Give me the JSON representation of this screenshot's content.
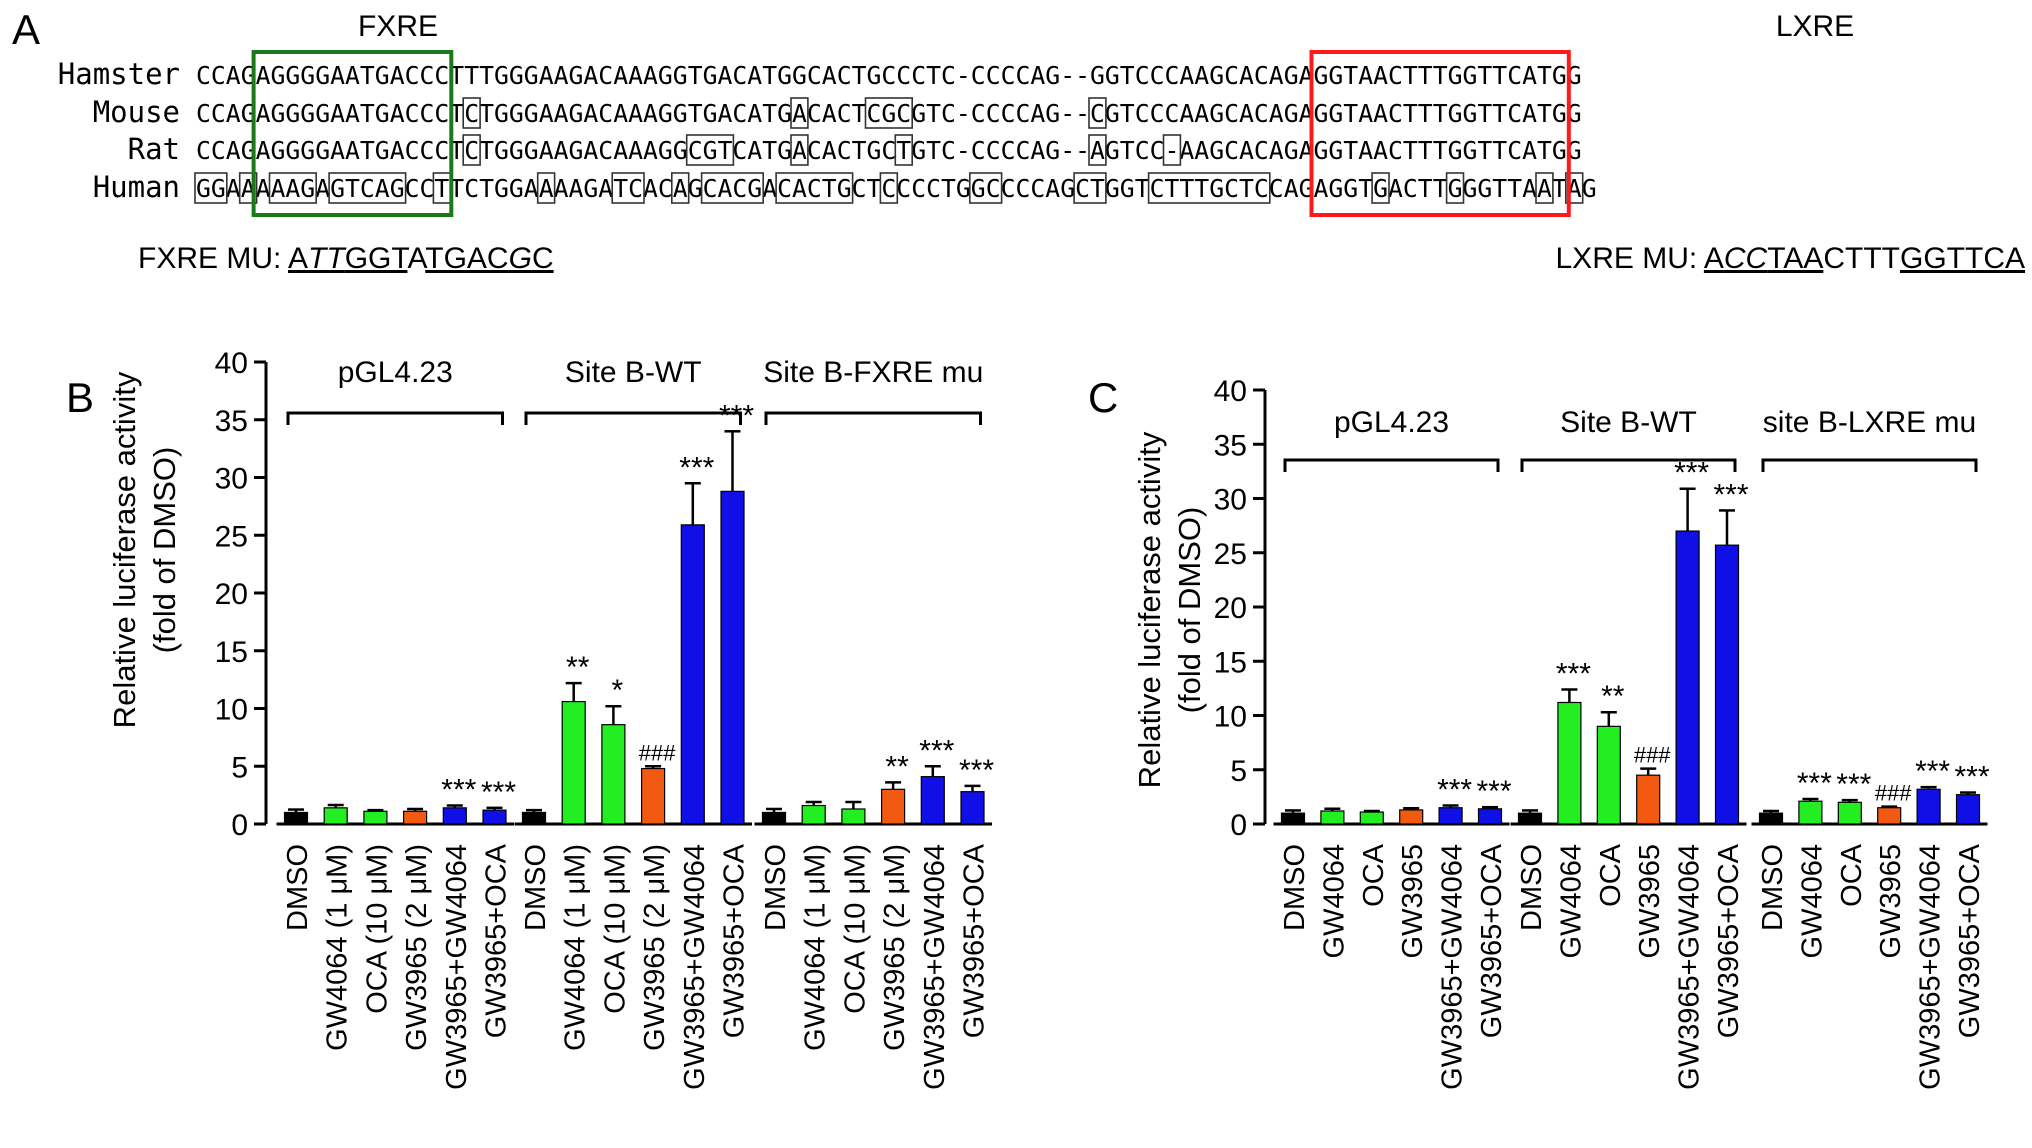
{
  "panels": {
    "a": "A",
    "b": "B",
    "c": "C"
  },
  "sequence": {
    "element_labels": {
      "fxre": "FXRE",
      "lxre": "LXRE"
    },
    "fxre_box_color": "#1a7a1a",
    "lxre_box_color": "#ff1a1a",
    "rows": [
      {
        "species": "Hamster",
        "seq": "CCAGAGGGGAATGACCCTTTGGGAAGACAAAGGTGACATGGCACTGCCCTC-CCCCAG--GGTCCCAAGCACAGAGGTAACTTTGGTTCATGG",
        "boxed": []
      },
      {
        "species": "Mouse",
        "seq": "CCAGAGGGGAATGACCCTCTGGGAAGACAAAGGTGACATGACACTCGCGTC-CCCCAG--CGTCCCAAGCACAGAGGTAACTTTGGTTCATGG",
        "boxed": [
          [
            18,
            18
          ],
          [
            40,
            40
          ],
          [
            45,
            47
          ],
          [
            60,
            60
          ]
        ]
      },
      {
        "species": "Rat",
        "seq": "CCAGAGGGGAATGACCCTCTGGGAAGACAAAGGCGTCATGACACTGCTGTC-CCCCAG--AGTCC-AAGCACAGAGGTAACTTTGGTTCATGG",
        "boxed": [
          [
            18,
            18
          ],
          [
            33,
            35
          ],
          [
            40,
            40
          ],
          [
            47,
            47
          ],
          [
            60,
            60
          ],
          [
            65,
            65
          ]
        ]
      },
      {
        "species": "Human",
        "seq": "GGAAAAAGAGTCAGCCTTCTGGAAAAGATCACAGCACGACACTGCTCCCCTGGCCCCAGCTGGTCTTTGCTCCAGAGGTGACTTGGGTTAATAG",
        "boxed": [
          [
            0,
            1
          ],
          [
            3,
            3
          ],
          [
            5,
            7
          ],
          [
            9,
            13
          ],
          [
            16,
            16
          ],
          [
            23,
            23
          ],
          [
            28,
            29
          ],
          [
            32,
            32
          ],
          [
            34,
            37
          ],
          [
            39,
            43
          ],
          [
            46,
            46
          ],
          [
            52,
            53
          ],
          [
            59,
            60
          ],
          [
            64,
            71
          ],
          [
            79,
            79
          ],
          [
            84,
            84
          ],
          [
            90,
            90
          ],
          [
            92,
            92
          ]
        ]
      }
    ],
    "mutants": [
      {
        "prefix": "FXRE MU: ",
        "segments": [
          {
            "t": "A",
            "u": true,
            "i": false
          },
          {
            "t": "TT",
            "u": true,
            "i": true
          },
          {
            "t": "GGT",
            "u": true,
            "i": false
          },
          {
            "t": "A",
            "u": false,
            "i": false
          },
          {
            "t": "TGAC",
            "u": true,
            "i": false
          },
          {
            "t": "G",
            "u": true,
            "i": true
          },
          {
            "t": "C",
            "u": true,
            "i": false
          }
        ]
      },
      {
        "prefix": "LXRE MU: ",
        "segments": [
          {
            "t": "A",
            "u": true,
            "i": false
          },
          {
            "t": "CC",
            "u": true,
            "i": true
          },
          {
            "t": "TAA",
            "u": true,
            "i": false
          },
          {
            "t": "CTTT",
            "u": false,
            "i": false
          },
          {
            "t": "GGTTCA",
            "u": true,
            "i": false
          }
        ]
      }
    ]
  },
  "colors": {
    "DMSO": "#000000",
    "FXR": "#22ee22",
    "LXR": "#f25a11",
    "combo": "#1010e6"
  },
  "chart_data": [
    {
      "panel": "B",
      "type": "bar",
      "ylabel": "Relative luciferase activity",
      "ylabel2": "(fold of DMSO)",
      "ylim": [
        0,
        40
      ],
      "yticks": [
        0,
        5,
        10,
        15,
        20,
        25,
        30,
        35,
        40
      ],
      "groups": [
        {
          "label": "pGL4.23",
          "bars": [
            {
              "label": "DMSO",
              "value": 1.0,
              "err": 0.25,
              "color": "DMSO",
              "sig": ""
            },
            {
              "label": "GW4064 (1 μM)",
              "value": 1.4,
              "err": 0.25,
              "color": "FXR",
              "sig": ""
            },
            {
              "label": "OCA (10 μM)",
              "value": 1.1,
              "err": 0.1,
              "color": "FXR",
              "sig": ""
            },
            {
              "label": "GW3965 (2 μM)",
              "value": 1.1,
              "err": 0.2,
              "color": "LXR",
              "sig": ""
            },
            {
              "label": "GW3965+GW4064",
              "value": 1.4,
              "err": 0.2,
              "color": "combo",
              "sig": "***"
            },
            {
              "label": "GW3965+OCA",
              "value": 1.2,
              "err": 0.2,
              "color": "combo",
              "sig": "***"
            }
          ]
        },
        {
          "label": "Site B-WT",
          "bars": [
            {
              "label": "DMSO",
              "value": 1.0,
              "err": 0.2,
              "color": "DMSO",
              "sig": ""
            },
            {
              "label": "GW4064 (1 μM)",
              "value": 10.6,
              "err": 1.6,
              "color": "FXR",
              "sig": "**"
            },
            {
              "label": "OCA (10 μM)",
              "value": 8.6,
              "err": 1.6,
              "color": "FXR",
              "sig": "*"
            },
            {
              "label": "GW3965 (2 μM)",
              "value": 4.8,
              "err": 0.2,
              "color": "LXR",
              "sig": "###"
            },
            {
              "label": "GW3965+GW4064",
              "value": 25.9,
              "err": 3.6,
              "color": "combo",
              "sig": "***"
            },
            {
              "label": "GW3965+OCA",
              "value": 28.8,
              "err": 5.2,
              "color": "combo",
              "sig": "***"
            }
          ]
        },
        {
          "label": "Site B-FXRE mu",
          "bars": [
            {
              "label": "DMSO",
              "value": 1.0,
              "err": 0.3,
              "color": "DMSO",
              "sig": ""
            },
            {
              "label": "GW4064 (1 μM)",
              "value": 1.6,
              "err": 0.3,
              "color": "FXR",
              "sig": ""
            },
            {
              "label": "OCA (10 μM)",
              "value": 1.3,
              "err": 0.6,
              "color": "FXR",
              "sig": ""
            },
            {
              "label": "GW3965 (2 μM)",
              "value": 3.0,
              "err": 0.6,
              "color": "LXR",
              "sig": "**"
            },
            {
              "label": "GW3965+GW4064",
              "value": 4.1,
              "err": 0.9,
              "color": "combo",
              "sig": "***"
            },
            {
              "label": "GW3965+OCA",
              "value": 2.8,
              "err": 0.5,
              "color": "combo",
              "sig": "***"
            }
          ]
        }
      ]
    },
    {
      "panel": "C",
      "type": "bar",
      "ylabel": "Relative luciferase activity",
      "ylabel2": "(fold of DMSO)",
      "ylim": [
        0,
        40
      ],
      "yticks": [
        0,
        5,
        10,
        15,
        20,
        25,
        30,
        35,
        40
      ],
      "groups": [
        {
          "label": "pGL4.23",
          "bars": [
            {
              "label": "DMSO",
              "value": 1.0,
              "err": 0.25,
              "color": "DMSO",
              "sig": ""
            },
            {
              "label": "GW4064",
              "value": 1.2,
              "err": 0.2,
              "color": "FXR",
              "sig": ""
            },
            {
              "label": "OCA",
              "value": 1.1,
              "err": 0.1,
              "color": "FXR",
              "sig": ""
            },
            {
              "label": "GW3965",
              "value": 1.3,
              "err": 0.15,
              "color": "LXR",
              "sig": ""
            },
            {
              "label": "GW3965+GW4064",
              "value": 1.5,
              "err": 0.2,
              "color": "combo",
              "sig": "***"
            },
            {
              "label": "GW3965+OCA",
              "value": 1.4,
              "err": 0.15,
              "color": "combo",
              "sig": "***"
            }
          ]
        },
        {
          "label": "Site B-WT",
          "bars": [
            {
              "label": "DMSO",
              "value": 1.0,
              "err": 0.25,
              "color": "DMSO",
              "sig": ""
            },
            {
              "label": "GW4064",
              "value": 11.2,
              "err": 1.2,
              "color": "FXR",
              "sig": "***"
            },
            {
              "label": "OCA",
              "value": 9.0,
              "err": 1.3,
              "color": "FXR",
              "sig": "**"
            },
            {
              "label": "GW3965",
              "value": 4.5,
              "err": 0.6,
              "color": "LXR",
              "sig": "###"
            },
            {
              "label": "GW3965+GW4064",
              "value": 27.0,
              "err": 3.9,
              "color": "combo",
              "sig": "***"
            },
            {
              "label": "GW3965+OCA",
              "value": 25.7,
              "err": 3.2,
              "color": "combo",
              "sig": "***"
            }
          ]
        },
        {
          "label": "site B-LXRE mu",
          "bars": [
            {
              "label": "DMSO",
              "value": 1.0,
              "err": 0.2,
              "color": "DMSO",
              "sig": ""
            },
            {
              "label": "GW4064",
              "value": 2.1,
              "err": 0.2,
              "color": "FXR",
              "sig": "***"
            },
            {
              "label": "OCA",
              "value": 2.0,
              "err": 0.2,
              "color": "FXR",
              "sig": "***"
            },
            {
              "label": "GW3965",
              "value": 1.5,
              "err": 0.1,
              "color": "LXR",
              "sig": "###"
            },
            {
              "label": "GW3965+GW4064",
              "value": 3.2,
              "err": 0.2,
              "color": "combo",
              "sig": "***"
            },
            {
              "label": "GW3965+OCA",
              "value": 2.7,
              "err": 0.2,
              "color": "combo",
              "sig": "***"
            }
          ]
        }
      ]
    }
  ]
}
